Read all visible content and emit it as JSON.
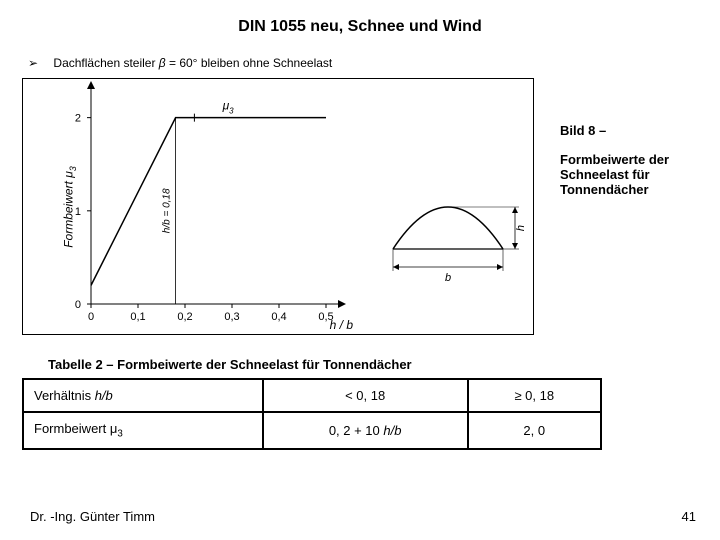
{
  "title": "DIN 1055 neu, Schnee und Wind",
  "bullet": {
    "prefix": "Dachflächen steiler ",
    "var": "β",
    "suffix": " = 60° bleiben ohne Schneelast"
  },
  "side": {
    "line1": "Bild 8 –",
    "line2": "Formbeiwerte der Schneelast für Tonnendächer"
  },
  "chart": {
    "ylabel": "Formbeiwert μ",
    "ylabel_sub": "3",
    "xlabel": "h / b",
    "xlim": [
      0,
      0.5
    ],
    "ylim": [
      0,
      2.2
    ],
    "xticks": [
      0,
      0.1,
      0.2,
      0.3,
      0.4,
      0.5
    ],
    "xtick_labels": [
      "0",
      "0,1",
      "0,2",
      "0,3",
      "0,4",
      "0,5"
    ],
    "yticks": [
      0,
      1,
      2
    ],
    "ytick_labels": [
      "0",
      "1",
      "2"
    ],
    "line_points": [
      [
        0,
        0.2
      ],
      [
        0.18,
        2.0
      ],
      [
        0.5,
        2.0
      ]
    ],
    "vline_x": 0.18,
    "vline_label": "h/b = 0,18",
    "annot_mu": "μ",
    "annot_mu_sub": "3",
    "annot_mu_xy": [
      0.28,
      2.0
    ],
    "line_color": "#000000",
    "axis_color": "#000000",
    "tick_fontsize": 11,
    "background": "#ffffff"
  },
  "barrel": {
    "b_label": "b",
    "h_label": "h"
  },
  "table_title": "Tabelle 2 – Formbeiwerte der Schneelast für Tonnendächer",
  "table": {
    "rows": [
      [
        "Verhältnis h/b",
        "< 0, 18",
        "≥ 0, 18"
      ],
      [
        "Formbeiwert μ₃",
        "0, 2 + 10 h/b",
        "2, 0"
      ]
    ],
    "r0c0_main": "Verhältnis ",
    "r0c0_it": "h/b",
    "r1c0_main": "Formbeiwert ",
    "r1c0_mu": "μ",
    "r1c0_sub": "3",
    "r1c1_a": "0, 2 + 10 ",
    "r1c1_b": "h/b"
  },
  "footer_name": "Dr. -Ing. Günter Timm",
  "footer_page": "41"
}
